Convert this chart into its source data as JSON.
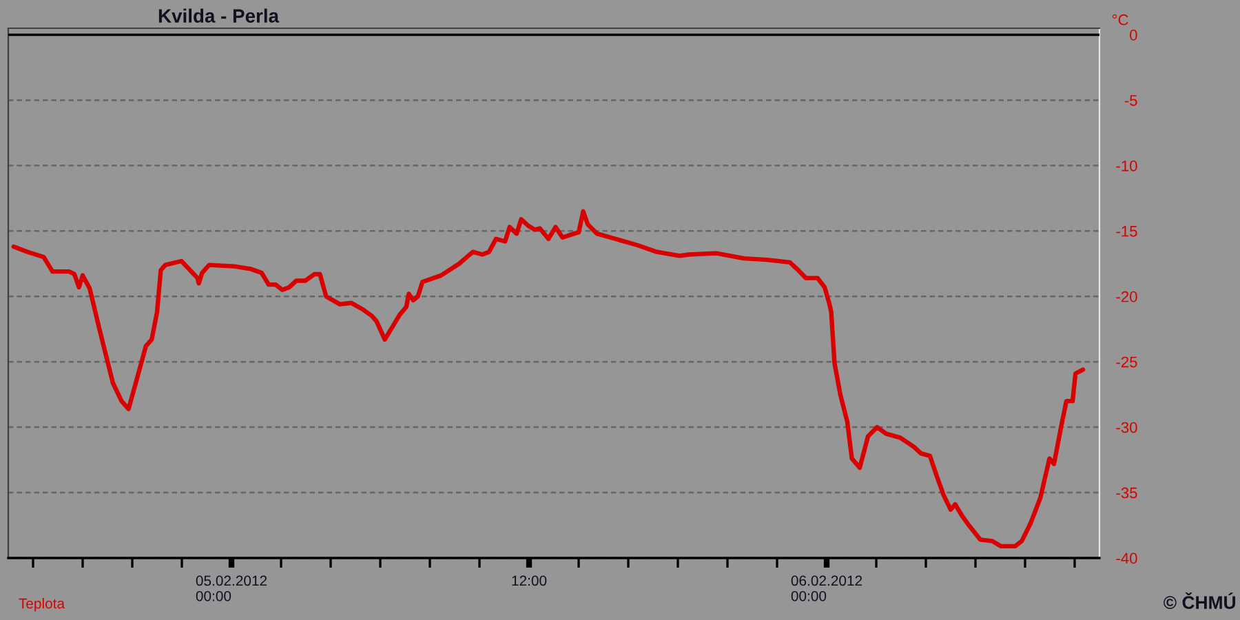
{
  "chart_data": {
    "type": "line",
    "title": "Kvilda - Perla",
    "ylabel": "°C",
    "annotations": [
      "© ČHMÚ"
    ],
    "xlim": [
      "2012-02-04T15:00",
      "2012-02-06T11:00"
    ],
    "xticks": [
      {
        "value": "2012-02-04T16:00",
        "label": null
      },
      {
        "value": "2012-02-04T18:00",
        "label": null
      },
      {
        "value": "2012-02-04T20:00",
        "label": null
      },
      {
        "value": "2012-02-04T22:00",
        "label": null
      },
      {
        "value": "2012-02-05T00:00",
        "label": "05.02.2012\n00:00"
      },
      {
        "value": "2012-02-05T02:00",
        "label": null
      },
      {
        "value": "2012-02-05T04:00",
        "label": null
      },
      {
        "value": "2012-02-05T06:00",
        "label": null
      },
      {
        "value": "2012-02-05T08:00",
        "label": null
      },
      {
        "value": "2012-02-05T10:00",
        "label": null
      },
      {
        "value": "2012-02-05T12:00",
        "label": "12:00"
      },
      {
        "value": "2012-02-05T14:00",
        "label": null
      },
      {
        "value": "2012-02-05T16:00",
        "label": null
      },
      {
        "value": "2012-02-05T18:00",
        "label": null
      },
      {
        "value": "2012-02-05T20:00",
        "label": null
      },
      {
        "value": "2012-02-05T22:00",
        "label": null
      },
      {
        "value": "2012-02-06T00:00",
        "label": "06.02.2012\n00:00"
      },
      {
        "value": "2012-02-06T02:00",
        "label": null
      },
      {
        "value": "2012-02-06T04:00",
        "label": null
      },
      {
        "value": "2012-02-06T06:00",
        "label": null
      },
      {
        "value": "2012-02-06T08:00",
        "label": null
      },
      {
        "value": "2012-02-06T10:00",
        "label": null
      }
    ],
    "ylim": [
      -40,
      0.5
    ],
    "yticks": [
      0,
      -5,
      -10,
      -15,
      -20,
      -25,
      -30,
      -35,
      -40
    ],
    "grid": "y",
    "legend": "bottom left",
    "line_style": "solid",
    "ref_lines": [
      {
        "axis": "y",
        "value": 0,
        "color": "#000000",
        "line_style": "solid"
      }
    ],
    "series": [
      {
        "name": "Teplota",
        "color": "#d80000",
        "x": [
          "2012-02-04T15:13",
          "2012-02-04T15:47",
          "2012-02-04T16:26",
          "2012-02-04T16:47",
          "2012-02-04T17:27",
          "2012-02-04T17:40",
          "2012-02-04T17:51",
          "2012-02-04T18:00",
          "2012-02-04T18:17",
          "2012-02-04T18:33",
          "2012-02-04T18:39",
          "2012-02-04T19:13",
          "2012-02-04T19:34",
          "2012-02-04T19:51",
          "2012-02-04T20:13",
          "2012-02-04T20:33",
          "2012-02-04T20:47",
          "2012-02-04T21:00",
          "2012-02-04T21:09",
          "2012-02-04T21:20",
          "2012-02-04T21:59",
          "2012-02-04T22:38",
          "2012-02-04T22:41",
          "2012-02-04T22:49",
          "2012-02-04T23:06",
          "2012-02-05T00:07",
          "2012-02-05T00:46",
          "2012-02-05T01:13",
          "2012-02-05T01:30",
          "2012-02-05T01:47",
          "2012-02-05T02:03",
          "2012-02-05T02:20",
          "2012-02-05T02:37",
          "2012-02-05T02:59",
          "2012-02-05T03:21",
          "2012-02-05T03:34",
          "2012-02-05T03:49",
          "2012-02-05T04:22",
          "2012-02-05T04:50",
          "2012-02-05T05:18",
          "2012-02-05T05:40",
          "2012-02-05T05:51",
          "2012-02-05T06:11",
          "2012-02-05T06:30",
          "2012-02-05T06:47",
          "2012-02-05T07:03",
          "2012-02-05T07:09",
          "2012-02-05T07:20",
          "2012-02-05T07:31",
          "2012-02-05T07:42",
          "2012-02-05T08:27",
          "2012-02-05T09:11",
          "2012-02-05T09:44",
          "2012-02-05T10:07",
          "2012-02-05T10:23",
          "2012-02-05T10:40",
          "2012-02-05T11:02",
          "2012-02-05T11:13",
          "2012-02-05T11:30",
          "2012-02-05T11:41",
          "2012-02-05T11:58",
          "2012-02-05T12:14",
          "2012-02-05T12:26",
          "2012-02-05T12:47",
          "2012-02-05T13:04",
          "2012-02-05T13:21",
          "2012-02-05T13:49",
          "2012-02-05T14:00",
          "2012-02-05T14:11",
          "2012-02-05T14:22",
          "2012-02-05T14:44",
          "2012-02-05T15:29",
          "2012-02-05T15:40",
          "2012-02-05T16:24",
          "2012-02-05T17:09",
          "2012-02-05T18:04",
          "2012-02-05T18:27",
          "2012-02-05T19:33",
          "2012-02-05T20:40",
          "2012-02-05T21:36",
          "2012-02-05T22:31",
          "2012-02-05T22:48",
          "2012-02-05T23:10",
          "2012-02-05T23:38",
          "2012-02-05T23:55",
          "2012-02-06T00:06",
          "2012-02-06T00:11",
          "2012-02-06T00:19",
          "2012-02-06T00:33",
          "2012-02-06T00:50",
          "2012-02-06T01:01",
          "2012-02-06T01:20",
          "2012-02-06T01:40",
          "2012-02-06T02:02",
          "2012-02-06T02:24",
          "2012-02-06T02:58",
          "2012-02-06T03:31",
          "2012-02-06T03:48",
          "2012-02-06T04:10",
          "2012-02-06T04:27",
          "2012-02-06T04:43",
          "2012-02-06T05:00",
          "2012-02-06T05:11",
          "2012-02-06T05:28",
          "2012-02-06T05:44",
          "2012-02-06T06:12",
          "2012-02-06T06:40",
          "2012-02-06T07:02",
          "2012-02-06T07:36",
          "2012-02-06T07:52",
          "2012-02-06T08:14",
          "2012-02-06T08:37",
          "2012-02-06T08:59",
          "2012-02-06T09:10",
          "2012-02-06T09:27",
          "2012-02-06T09:40",
          "2012-02-06T09:55",
          "2012-02-06T10:02",
          "2012-02-06T10:20"
        ],
        "values": [
          -16.2,
          -16.6,
          -17.0,
          -18.1,
          -18.1,
          -18.3,
          -19.3,
          -18.4,
          -19.4,
          -21.5,
          -22.3,
          -26.6,
          -28.0,
          -28.6,
          -26.1,
          -23.8,
          -23.3,
          -21.2,
          -18.0,
          -17.6,
          -17.3,
          -18.6,
          -19.0,
          -18.2,
          -17.6,
          -17.7,
          -17.9,
          -18.2,
          -19.1,
          -19.1,
          -19.5,
          -19.3,
          -18.8,
          -18.8,
          -18.3,
          -18.3,
          -20.0,
          -20.6,
          -20.5,
          -21.0,
          -21.5,
          -21.9,
          -23.3,
          -22.3,
          -21.4,
          -20.8,
          -19.8,
          -20.3,
          -20.0,
          -18.9,
          -18.4,
          -17.5,
          -16.6,
          -16.8,
          -16.6,
          -15.6,
          -15.8,
          -14.7,
          -15.2,
          -14.1,
          -14.6,
          -14.9,
          -14.8,
          -15.6,
          -14.7,
          -15.5,
          -15.2,
          -15.1,
          -13.5,
          -14.5,
          -15.2,
          -15.6,
          -15.7,
          -16.1,
          -16.6,
          -16.9,
          -16.8,
          -16.7,
          -17.1,
          -17.2,
          -17.4,
          -17.9,
          -18.6,
          -18.6,
          -19.3,
          -20.5,
          -21.2,
          -25.1,
          -27.5,
          -29.6,
          -32.4,
          -33.1,
          -30.7,
          -30.0,
          -30.5,
          -30.8,
          -31.5,
          -32.0,
          -32.2,
          -33.8,
          -35.2,
          -36.3,
          -35.9,
          -36.8,
          -37.5,
          -38.6,
          -38.7,
          -39.1,
          -39.1,
          -38.7,
          -37.3,
          -35.4,
          -32.4,
          -32.8,
          -30.0,
          -28.0,
          -28.0,
          -25.9,
          -25.6
        ]
      }
    ]
  }
}
